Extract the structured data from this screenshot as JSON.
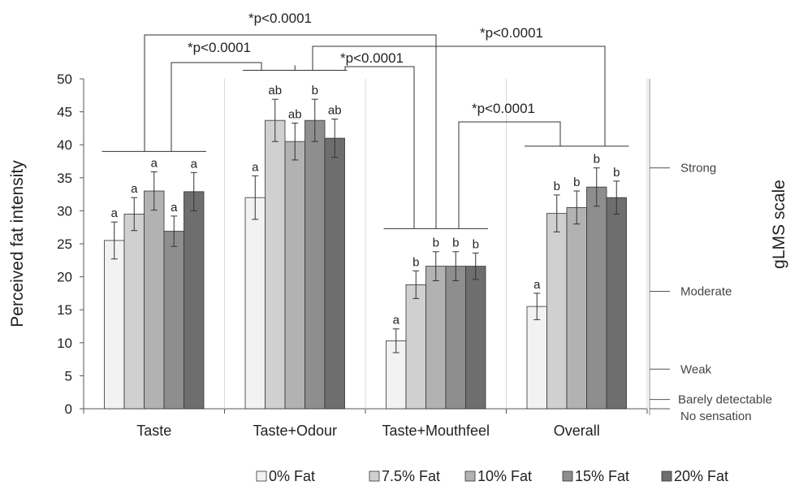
{
  "chart_data": {
    "type": "bar",
    "ylabel": "Perceived fat intensity",
    "xlabel": "",
    "ylim": [
      0,
      50
    ],
    "yticks": [
      "0",
      "5",
      "10",
      "15",
      "20",
      "25",
      "30",
      "35",
      "40",
      "45",
      "50"
    ],
    "categories": [
      "Taste",
      "Taste+Odour",
      "Taste+Mouthfeel",
      "Overall"
    ],
    "legend_position": "bottom",
    "grid": "vertical separators only",
    "series": [
      {
        "name": "0% Fat",
        "color": "#f2f2f2",
        "values": [
          25.5,
          32.0,
          10.3,
          15.5
        ],
        "errors": [
          2.8,
          3.3,
          1.8,
          2.0
        ],
        "letters": [
          "a",
          "a",
          "a",
          "a"
        ]
      },
      {
        "name": "7.5% Fat",
        "color": "#d0d0d0",
        "values": [
          29.5,
          43.7,
          18.8,
          29.6
        ],
        "errors": [
          2.5,
          3.2,
          2.1,
          2.8
        ],
        "letters": [
          "a",
          "ab",
          "b",
          "b"
        ]
      },
      {
        "name": "10% Fat",
        "color": "#b2b2b2",
        "values": [
          33.0,
          40.5,
          21.6,
          30.5
        ],
        "errors": [
          2.9,
          2.8,
          2.2,
          2.5
        ],
        "letters": [
          "a",
          "ab",
          "b",
          "b"
        ]
      },
      {
        "name": "15% Fat",
        "color": "#8e8e8e",
        "values": [
          26.9,
          43.7,
          21.6,
          33.6
        ],
        "errors": [
          2.3,
          3.2,
          2.2,
          2.9
        ],
        "letters": [
          "a",
          "b",
          "b",
          "b"
        ]
      },
      {
        "name": "20% Fat",
        "color": "#6e6e6e",
        "values": [
          32.9,
          41.0,
          21.6,
          32.0
        ],
        "errors": [
          2.9,
          2.9,
          2.0,
          2.5
        ],
        "letters": [
          "a",
          "ab",
          "b",
          "b"
        ]
      }
    ],
    "glms_scale": {
      "title": "gLMS scale",
      "labels": [
        {
          "text": "Strong",
          "value": 36.5
        },
        {
          "text": "Moderate",
          "value": 17.8
        },
        {
          "text": "Weak",
          "value": 6.0
        },
        {
          "text": "Barely detectable",
          "value": 1.4
        },
        {
          "text": "No sensation",
          "value": 0
        }
      ]
    },
    "significance": [
      {
        "label": "*p<0.0001",
        "from": "Taste",
        "to": "Taste+Mouthfeel"
      },
      {
        "label": "*p<0.0001",
        "from": "Taste",
        "to": "Taste+Odour"
      },
      {
        "label": "*p<0.0001",
        "from": "Taste+Odour",
        "to": "Overall"
      },
      {
        "label": "*p<0.0001",
        "from": "Taste+Odour",
        "to": "Taste+Mouthfeel"
      },
      {
        "label": "*p<0.0001",
        "from": "Taste+Mouthfeel",
        "to": "Overall"
      }
    ]
  }
}
